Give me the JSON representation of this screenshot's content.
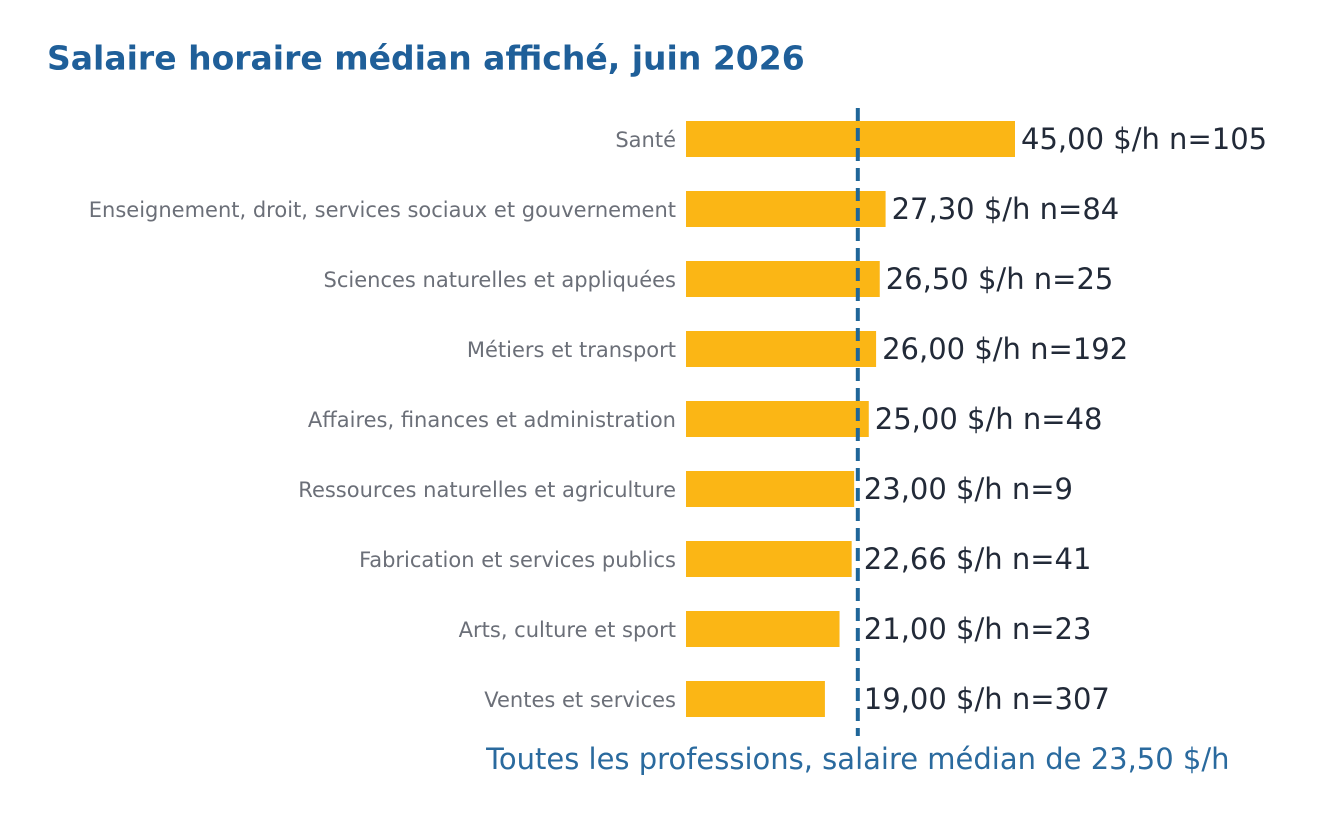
{
  "chart_data": {
    "type": "bar",
    "orientation": "horizontal",
    "title": "Salaire horaire médian affiché, juin 2026",
    "categories": [
      "Santé",
      "Enseignement, droit, services sociaux et gouvernement",
      "Sciences naturelles et appliquées",
      "Métiers et transport",
      "Affaires, finances et administration",
      "Ressources naturelles et agriculture",
      "Fabrication et services publics",
      "Arts, culture et sport",
      "Ventes et services"
    ],
    "values": [
      45.0,
      27.3,
      26.5,
      26.0,
      25.0,
      23.0,
      22.66,
      21.0,
      19.0
    ],
    "value_labels": [
      "45,00 $/h  n=105",
      "27,30 $/h  n=84",
      "26,50 $/h  n=25",
      "26,00 $/h  n=192",
      "25,00 $/h  n=48",
      "23,00 $/h  n=9",
      "22,66 $/h  n=41",
      "21,00 $/h  n=23",
      "19,00 $/h  n=307"
    ],
    "color": "#fbb615",
    "reference": {
      "value": 23.5,
      "label": "Toutes les professions, salaire médian de 23,50 $/h",
      "color": "#1f6699"
    }
  }
}
